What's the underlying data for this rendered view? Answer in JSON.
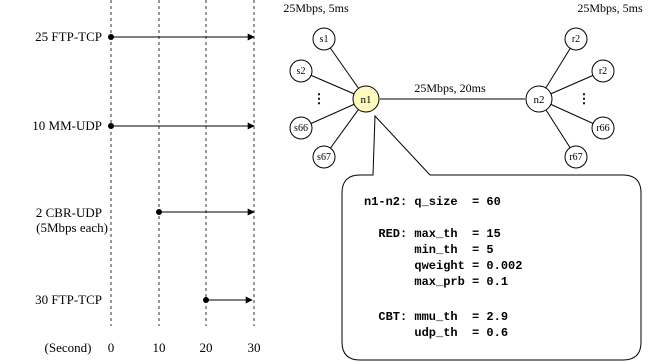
{
  "timeline": {
    "flows": [
      {
        "label": "25 FTP-TCP",
        "start": 0,
        "end": 30
      },
      {
        "label": "10 MM-UDP",
        "start": 0,
        "end": 30
      },
      {
        "label": "2 CBR-UDP",
        "label2": "(5Mbps each)",
        "start": 10,
        "end": 30
      },
      {
        "label": "30 FTP-TCP",
        "start": 20,
        "end": 30
      }
    ],
    "axis_unit": "(Second)",
    "ticks": [
      "0",
      "10",
      "20",
      "30"
    ]
  },
  "topology": {
    "left_link_label": "25Mbps, 5ms",
    "right_link_label": "25Mbps, 5ms",
    "bottleneck_label": "25Mbps, 20ms",
    "router_left": "n1",
    "router_right": "n2",
    "left_sources": [
      "s1",
      "s2",
      "s66",
      "s67"
    ],
    "right_receivers": [
      "r2",
      "r2",
      "r66",
      "r67"
    ],
    "router_left_color": "#fffbbf"
  },
  "config": {
    "lines": [
      "n1-n2: q_size  = 60",
      "",
      "  RED: max_th  = 15",
      "       min_th  = 5",
      "       qweight = 0.002",
      "       max_prb = 0.1",
      "",
      "  CBT: mmu_th  = 2.9",
      "       udp_th  = 0.6"
    ]
  }
}
